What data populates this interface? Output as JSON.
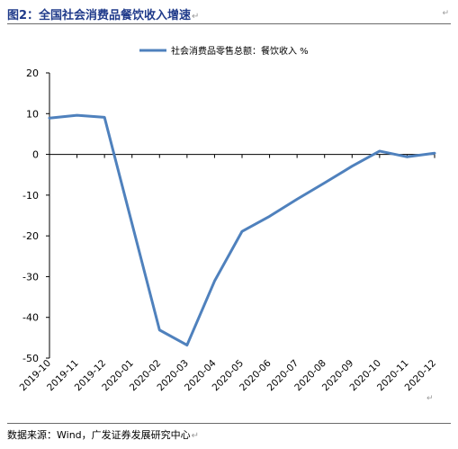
{
  "header": {
    "title": "图2：全国社会消费品餐饮收入增速",
    "mark": "↵"
  },
  "footer": {
    "source": "数据来源：Wind，广发证券发展研究中心",
    "mark": "↵"
  },
  "chart_data": {
    "type": "line",
    "title": "",
    "xlabel": "",
    "ylabel": "",
    "categories": [
      "2019-10",
      "2019-11",
      "2019-12",
      "2020-01",
      "2020-02",
      "2020-03",
      "2020-04",
      "2020-05",
      "2020-06",
      "2020-07",
      "2020-08",
      "2020-09",
      "2020-10",
      "2020-11",
      "2020-12"
    ],
    "series": [
      {
        "name": "社会消费品零售总额：餐饮收入 %",
        "color": "#4f81bd",
        "points": [
          {
            "x": "2019-10",
            "y": 8.9
          },
          {
            "x": "2019-11",
            "y": 9.6
          },
          {
            "x": "2019-12",
            "y": 9.1
          },
          {
            "x": "2020-02",
            "y": -43.1
          },
          {
            "x": "2020-03",
            "y": -46.8
          },
          {
            "x": "2020-04",
            "y": -31.1
          },
          {
            "x": "2020-05",
            "y": -18.9
          },
          {
            "x": "2020-06",
            "y": -15.2
          },
          {
            "x": "2020-07",
            "y": -11.0
          },
          {
            "x": "2020-08",
            "y": -7.0
          },
          {
            "x": "2020-09",
            "y": -2.9
          },
          {
            "x": "2020-10",
            "y": 0.8
          },
          {
            "x": "2020-11",
            "y": -0.6
          },
          {
            "x": "2020-12",
            "y": 0.3
          }
        ]
      }
    ],
    "ylim": [
      -50,
      20
    ],
    "yticks": [
      -50,
      -40,
      -30,
      -20,
      -10,
      0,
      10,
      20
    ],
    "grid": false,
    "legend": "top-center"
  }
}
